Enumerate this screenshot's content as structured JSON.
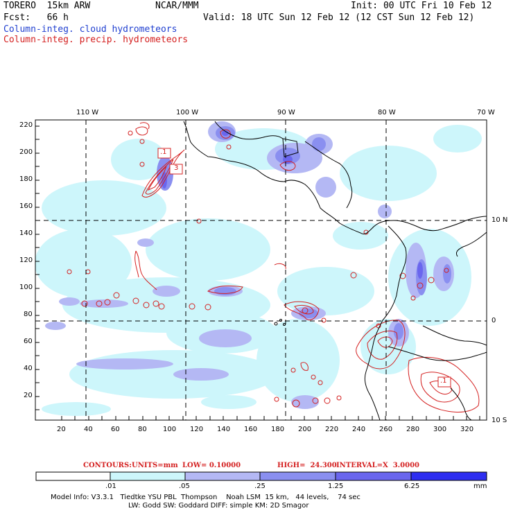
{
  "header": {
    "model": "TORERO  15km ARW",
    "org": "NCAR/MMM",
    "init": "Init: 00 UTC Fri 10 Feb 12",
    "fcst": "Fcst:   66 h",
    "valid": "Valid: 18 UTC Sun 12 Feb 12 (12 CST Sun 12 Feb 12)",
    "field1": "Column-integ. cloud hydrometeors",
    "field2": "Column-integ. precip. hydrometeors"
  },
  "colors": {
    "field1": "#1f3fd0",
    "field2": "#d42020",
    "levels": [
      "#ffffff",
      "#cdf6fb",
      "#b4b8f4",
      "#8a8ff0",
      "#6a66ee",
      "#2e2ef0"
    ]
  },
  "axes": {
    "top_labels": [
      "110 W",
      "100 W",
      "90 W",
      "80 W",
      "70 W"
    ],
    "right_labels": [
      "10 N",
      "0",
      "10 S"
    ],
    "left_labels": [
      "220",
      "200",
      "180",
      "160",
      "140",
      "120",
      "100",
      "80",
      "60",
      "40",
      "20"
    ],
    "bottom_labels": [
      "20",
      "40",
      "60",
      "80",
      "100",
      "120",
      "140",
      "160",
      "180",
      "200",
      "220",
      "240",
      "260",
      "280",
      "300",
      "320"
    ]
  },
  "contour_labels": [
    ".1",
    "3",
    ".1"
  ],
  "contours_line": {
    "prefix": "CONTOURS:",
    "units": "UNITS=mm",
    "low": "LOW= 0.10000",
    "high": "HIGH=  24.300",
    "interval": "INTERVAL=X  3.0000"
  },
  "colorbar": {
    "ticks": [
      ".01",
      ".05",
      ".25",
      "1.25",
      "6.25"
    ],
    "unit": "mm"
  },
  "model_info": {
    "line1": "Model Info: V3.3.1   Tiedtke YSU PBL  Thompson    Noah LSM  15 km,   44 levels,    74 sec",
    "line2": "LW: Godd SW: Goddard DIFF: simple KM: 2D Smagor"
  }
}
